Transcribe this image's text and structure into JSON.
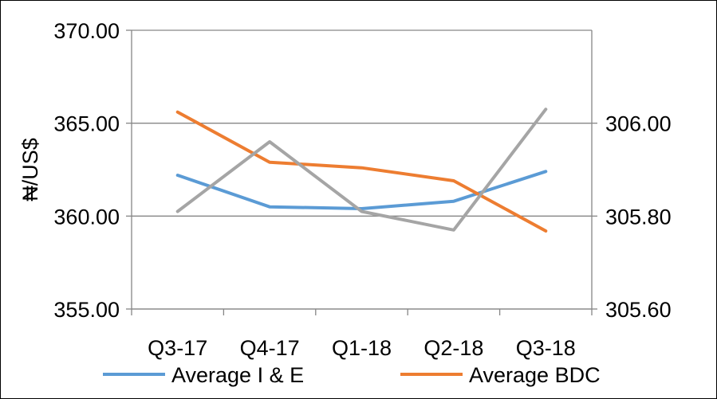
{
  "chart_data": {
    "type": "line",
    "categories": [
      "Q3-17",
      "Q4-17",
      "Q1-18",
      "Q2-18",
      "Q3-18"
    ],
    "ylabel": "₦/US$",
    "y_left": {
      "ticks": [
        "355.00",
        "360.00",
        "365.00",
        "370.00"
      ],
      "min": 355,
      "max": 370
    },
    "y_right": {
      "ticks": [
        "305.60",
        "305.80",
        "306.00"
      ],
      "min": 305.6,
      "max": 306.2
    },
    "grid": true,
    "legend_position": "bottom",
    "series": [
      {
        "name": "Average I & E",
        "color": "#5b9bd5",
        "axis": "left",
        "values": [
          362.2,
          360.5,
          360.4,
          360.8,
          362.4
        ]
      },
      {
        "name": "Average BDC",
        "color": "#ed7d31",
        "axis": "left",
        "values": [
          365.6,
          362.9,
          362.6,
          361.9,
          359.2
        ]
      },
      {
        "name": "",
        "color": "#a5a5a5",
        "axis": "right",
        "values": [
          305.81,
          305.96,
          305.81,
          305.77,
          306.03
        ]
      }
    ]
  }
}
